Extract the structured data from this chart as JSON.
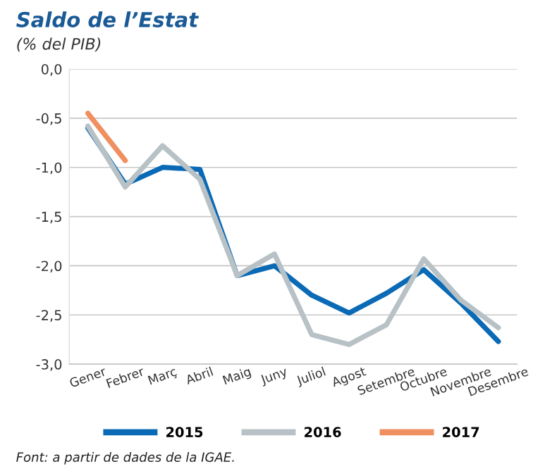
{
  "chart_data": {
    "type": "line",
    "title": "Saldo de l’Estat",
    "subtitle": "(% del PIB)",
    "categories": [
      "Gener",
      "Febrer",
      "Març",
      "Abril",
      "Maig",
      "Juny",
      "Juliol",
      "Agost",
      "Setembre",
      "Octubre",
      "Novembre",
      "Desembre"
    ],
    "series": [
      {
        "name": "2015",
        "color": "#0a6ab5",
        "values": [
          -0.6,
          -1.17,
          -1.0,
          -1.02,
          -2.1,
          -2.0,
          -2.3,
          -2.48,
          -2.28,
          -2.04,
          -2.38,
          -2.77
        ]
      },
      {
        "name": "2016",
        "color": "#b8c2c6",
        "values": [
          -0.58,
          -1.2,
          -0.78,
          -1.12,
          -2.1,
          -1.88,
          -2.7,
          -2.8,
          -2.6,
          -1.93,
          -2.35,
          -2.63
        ]
      },
      {
        "name": "2017",
        "color": "#f08f5f",
        "values": [
          -0.45,
          -0.93,
          null,
          null,
          null,
          null,
          null,
          null,
          null,
          null,
          null,
          null
        ]
      }
    ],
    "ylim": [
      -3.0,
      0.0
    ],
    "yticks": [
      {
        "value": 0.0,
        "label": "0,0"
      },
      {
        "value": -0.5,
        "label": "-0,5"
      },
      {
        "value": -1.0,
        "label": "-1,0"
      },
      {
        "value": -1.5,
        "label": "-1,5"
      },
      {
        "value": -2.0,
        "label": "-2,0"
      },
      {
        "value": -2.5,
        "label": "-2,5"
      },
      {
        "value": -3.0,
        "label": "-3,0"
      }
    ],
    "grid": "y",
    "legend": "bottom",
    "marker": "none",
    "line_style": "solid",
    "annotations": [
      "Font: a partir de dades de la IGAE."
    ]
  }
}
